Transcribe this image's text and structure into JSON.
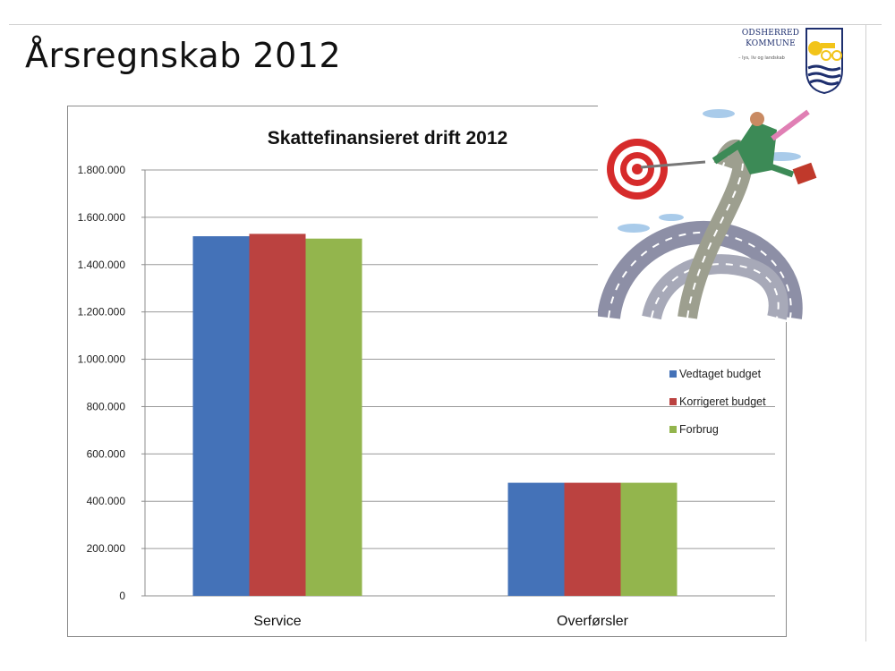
{
  "slide": {
    "title": "Årsregnskab 2012"
  },
  "logo": {
    "line1": "ODSHERRED",
    "line2": "KOMMUNE",
    "tagline": "– lys, liv og landskab"
  },
  "chart_data": {
    "type": "bar",
    "title": "Skattefinansieret drift 2012",
    "categories": [
      "Service",
      "Overførsler"
    ],
    "series": [
      {
        "name": "Vedtaget budget",
        "color": "#4472b8",
        "values": [
          1520000,
          478000
        ]
      },
      {
        "name": "Korrigeret budget",
        "color": "#bb4240",
        "values": [
          1530000,
          478000
        ]
      },
      {
        "name": "Forbrug",
        "color": "#93b54d",
        "values": [
          1510000,
          478000
        ]
      }
    ],
    "ylim": [
      0,
      1800000
    ],
    "yticks": [
      0,
      200000,
      400000,
      600000,
      800000,
      1000000,
      1200000,
      1400000,
      1600000,
      1800000
    ],
    "ytick_labels": [
      "0",
      "200.000",
      "400.000",
      "600.000",
      "800.000",
      "1.000.000",
      "1.200.000",
      "1.400.000",
      "1.600.000",
      "1.800.000"
    ],
    "xlabel": "",
    "ylabel": "",
    "grid": true,
    "legend_position": "right"
  }
}
